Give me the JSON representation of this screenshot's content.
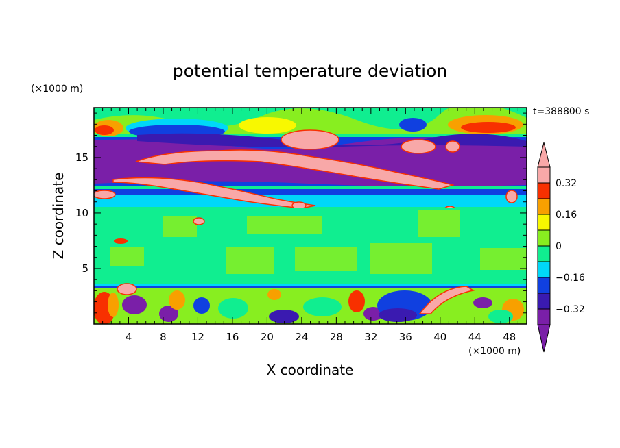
{
  "chart_data": {
    "type": "heatmap",
    "title": "potential temperature deviation",
    "xlabel": "X coordinate",
    "ylabel": "Z coordinate",
    "x_unit": "(×1000 m)",
    "y_unit": "(×1000 m)",
    "time_label": "t=388800 s",
    "xlim": [
      0,
      50
    ],
    "ylim": [
      0,
      19.5
    ],
    "x_ticks": [
      4,
      8,
      12,
      16,
      20,
      24,
      28,
      32,
      36,
      40,
      44,
      48
    ],
    "y_ticks": [
      5,
      10,
      15
    ],
    "colorbar": {
      "levels": [
        -0.4,
        -0.32,
        -0.24,
        -0.16,
        -0.08,
        0,
        0.08,
        0.16,
        0.24,
        0.32,
        0.4
      ],
      "labeled": [
        -0.32,
        -0.16,
        0,
        0.16,
        0.32
      ],
      "labels": [
        "0.32",
        "0.16",
        "0",
        "−0.16",
        "−0.32"
      ],
      "colors": [
        "#7a1fa8",
        "#3a1ab0",
        "#1040e0",
        "#00d8f8",
        "#10ee90",
        "#88ee20",
        "#f8f800",
        "#f8a000",
        "#f83000",
        "#f8a8a8"
      ],
      "under_color": "#7a1fa8",
      "over_color": "#f8a8a8"
    },
    "layers": [
      {
        "z": [
          0,
          3.4
        ],
        "value": "mixed -0.4 to 0.4 (turbulent)"
      },
      {
        "z": [
          3.4,
          3.7
        ],
        "value": -0.2
      },
      {
        "z": [
          3.7,
          11
        ],
        "value": 0.0
      },
      {
        "z": [
          11,
          12.2
        ],
        "value": -0.12
      },
      {
        "z": [
          12.2,
          16.5
        ],
        "value": -0.36
      },
      {
        "z": [
          12.5,
          15.5
        ],
        "value": ">0.4 (tilted sheets)"
      },
      {
        "z": [
          16.5,
          19.5
        ],
        "value": "mixed -0.3 to 0.4"
      }
    ]
  }
}
